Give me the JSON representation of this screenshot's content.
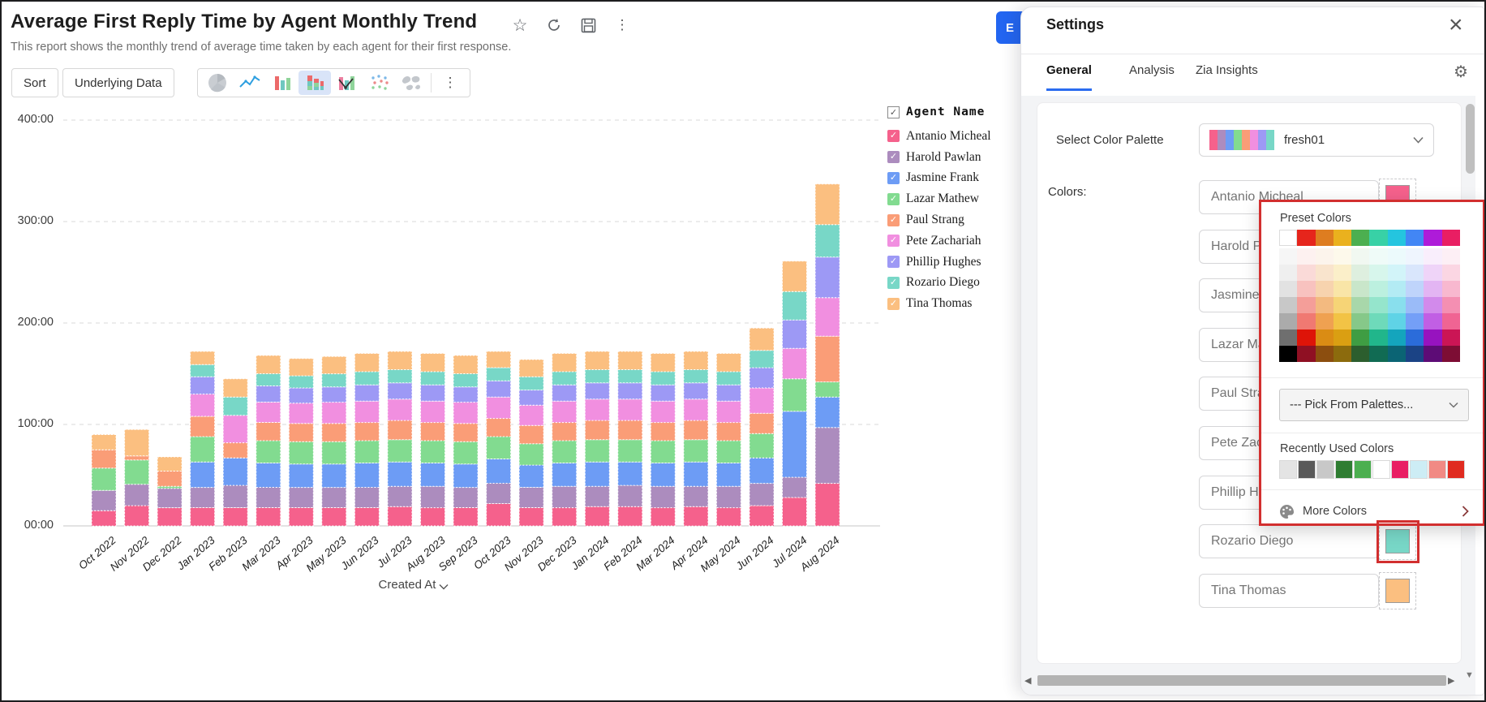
{
  "report": {
    "title": "Average First Reply Time by Agent Monthly Trend",
    "subtitle": "This report shows the monthly trend of average time taken by each agent for their first response.",
    "toolbar": {
      "sort_label": "Sort",
      "underlying_data_label": "Underlying Data",
      "chart_types": [
        "pie-chart",
        "line-chart",
        "bar-chart",
        "stacked-bar-chart",
        "bar-line-chart",
        "scatter-chart",
        "map-chart"
      ],
      "selected_chart_type": "stacked-bar-chart"
    },
    "export_button_visible_label": "E"
  },
  "chart_data": {
    "type": "bar",
    "stacked": true,
    "unit": "hours (HH:00)",
    "title": "Average First Reply Time by Agent Monthly Trend",
    "xlabel": "Created At",
    "ylabel": "",
    "ylim": [
      0,
      400
    ],
    "y_ticks": [
      "00:00",
      "100:00",
      "200:00",
      "300:00",
      "400:00"
    ],
    "grid": "dashed horizontal gridlines",
    "legend_title": "Agent Name",
    "legend_position": "right",
    "categories": [
      "Oct 2022",
      "Nov 2022",
      "Dec 2022",
      "Jan 2023",
      "Feb 2023",
      "Mar 2023",
      "Apr 2023",
      "May 2023",
      "Jun 2023",
      "Jul 2023",
      "Aug 2023",
      "Sep 2023",
      "Oct 2023",
      "Nov 2023",
      "Dec 2023",
      "Jan 2024",
      "Feb 2024",
      "Mar 2024",
      "Apr 2024",
      "May 2024",
      "Jun 2024",
      "Jul 2024",
      "Aug 2024"
    ],
    "series": [
      {
        "name": "Antanio Micheal",
        "color": "#F5618C",
        "values": [
          15,
          20,
          18,
          18,
          18,
          18,
          18,
          18,
          18,
          19,
          18,
          18,
          22,
          18,
          18,
          19,
          19,
          18,
          19,
          18,
          20,
          28,
          42
        ]
      },
      {
        "name": "Harold Pawlan",
        "color": "#AC8CBE",
        "values": [
          20,
          21,
          19,
          20,
          22,
          20,
          20,
          20,
          20,
          20,
          21,
          20,
          20,
          20,
          21,
          20,
          21,
          21,
          20,
          21,
          22,
          20,
          55
        ]
      },
      {
        "name": "Jasmine Frank",
        "color": "#6D9CF5",
        "values": [
          0,
          0,
          0,
          25,
          27,
          24,
          23,
          23,
          24,
          24,
          23,
          23,
          24,
          22,
          23,
          24,
          23,
          23,
          24,
          23,
          25,
          65,
          30
        ]
      },
      {
        "name": "Lazar Mathew",
        "color": "#82DB90",
        "values": [
          22,
          24,
          2,
          25,
          0,
          22,
          22,
          22,
          22,
          22,
          22,
          22,
          22,
          21,
          22,
          22,
          22,
          22,
          22,
          22,
          24,
          32,
          15
        ]
      },
      {
        "name": "Paul Strang",
        "color": "#FA9D77",
        "values": [
          18,
          4,
          15,
          20,
          15,
          18,
          18,
          18,
          18,
          19,
          18,
          18,
          18,
          18,
          18,
          19,
          19,
          18,
          19,
          18,
          20,
          0,
          45
        ]
      },
      {
        "name": "Pete Zachariah",
        "color": "#F18FE0",
        "values": [
          0,
          0,
          0,
          22,
          27,
          20,
          20,
          21,
          21,
          21,
          21,
          21,
          21,
          20,
          21,
          21,
          21,
          21,
          21,
          21,
          25,
          30,
          38
        ]
      },
      {
        "name": "Phillip Hughes",
        "color": "#9D99F5",
        "values": [
          0,
          0,
          0,
          17,
          0,
          16,
          15,
          15,
          16,
          16,
          16,
          15,
          16,
          15,
          16,
          16,
          16,
          16,
          16,
          16,
          20,
          28,
          40
        ]
      },
      {
        "name": "Rozario Diego",
        "color": "#78D7C7",
        "values": [
          0,
          0,
          0,
          12,
          18,
          12,
          12,
          13,
          13,
          13,
          13,
          13,
          13,
          13,
          13,
          13,
          13,
          13,
          13,
          13,
          17,
          28,
          32
        ]
      },
      {
        "name": "Tina Thomas",
        "color": "#FBBF80",
        "values": [
          15,
          26,
          14,
          13,
          18,
          18,
          17,
          17,
          18,
          18,
          18,
          18,
          16,
          17,
          18,
          18,
          18,
          18,
          18,
          18,
          22,
          30,
          40
        ]
      }
    ]
  },
  "settings_panel": {
    "title": "Settings",
    "tabs": [
      {
        "label": "General",
        "active": true
      },
      {
        "label": "Analysis",
        "active": false
      },
      {
        "label": "Zia Insights",
        "active": false
      }
    ],
    "select_color_palette_label": "Select Color Palette",
    "palette": {
      "name": "fresh01",
      "strip": [
        "#F5618C",
        "#AC8CBE",
        "#6D9CF5",
        "#82DB90",
        "#FA9D77",
        "#F18FE0",
        "#9D99F5",
        "#78D7C7"
      ]
    },
    "colors_label": "Colors:",
    "agents": [
      {
        "name": "Antanio Micheal",
        "color": "#F5618C"
      },
      {
        "name": "Harold Pawlan",
        "color": "#AC8CBE"
      },
      {
        "name": "Jasmine Frank",
        "color": "#6D9CF5"
      },
      {
        "name": "Lazar Mathew",
        "color": "#82DB90"
      },
      {
        "name": "Paul Strang",
        "color": "#FA9D77"
      },
      {
        "name": "Pete Zachariah",
        "color": "#F18FE0"
      },
      {
        "name": "Phillip Hughes",
        "color": "#9D99F5"
      },
      {
        "name": "Rozario Diego",
        "color": "#78D7C7"
      },
      {
        "name": "Tina Thomas",
        "color": "#FBBF80"
      }
    ],
    "highlighted_agent": "Rozario Diego",
    "annotation_color": "#d22f2f"
  },
  "color_popup": {
    "title": "Preset Colors",
    "grid_columns": [
      [
        "#FFFFFF",
        "#F6F6F6",
        "#EFEFEF",
        "#E2E2E2",
        "#C8C8C8",
        "#ABABAB",
        "#6F6F6F",
        "#000000"
      ],
      [
        "#E6251C",
        "#FDF1F0",
        "#FADAD8",
        "#F8C2BF",
        "#F49E99",
        "#F07972",
        "#DE1408",
        "#8F1023"
      ],
      [
        "#DE7D20",
        "#FCF4EC",
        "#F9E4CD",
        "#F7D3AE",
        "#F3BA80",
        "#EFA151",
        "#DA8C14",
        "#8C4E0F"
      ],
      [
        "#EAB11E",
        "#FDF9EB",
        "#FBEFC9",
        "#F9E5A7",
        "#F6D476",
        "#F2C345",
        "#DA9F12",
        "#8C6B0D"
      ],
      [
        "#4CAF50",
        "#F1F8F1",
        "#DEEFDF",
        "#C9E6CA",
        "#A8D7AA",
        "#86C889",
        "#3F9D43",
        "#2C5E2E"
      ],
      [
        "#38D1A6",
        "#EFFBF8",
        "#D7F6EC",
        "#BCF0DF",
        "#95E5CC",
        "#6EDABA",
        "#21B68B",
        "#116B53"
      ],
      [
        "#24C5DF",
        "#ECFAFC",
        "#D2F4F9",
        "#B3EBF4",
        "#89DFED",
        "#5FD3E6",
        "#14A5BD",
        "#0B6474"
      ],
      [
        "#4286F5",
        "#EFF5FE",
        "#D9E6FC",
        "#BFD4FB",
        "#9ABBF8",
        "#749FF7",
        "#2B6CDA",
        "#1B4385"
      ],
      [
        "#AE1BD9",
        "#F9EEFC",
        "#EFD4F8",
        "#E3B5F3",
        "#D28AEB",
        "#C15FE4",
        "#9713BF",
        "#5D0C76"
      ],
      [
        "#E91E63",
        "#FDEFF5",
        "#FBD6E3",
        "#F8B8CF",
        "#F48FB2",
        "#F06493",
        "#CB1555",
        "#7D0D34"
      ]
    ],
    "pick_from_palettes_label": "--- Pick From Palettes...",
    "recently_used_label": "Recently Used Colors",
    "recently_used": [
      "#E4E4E4",
      "#595959",
      "#C8C8C8",
      "#2F7D32",
      "#4CAF50",
      "#FFFFFF",
      "#E91E63",
      "#CDEDF5",
      "#F18A84",
      "#E02B20"
    ],
    "more_colors_label": "More Colors"
  }
}
